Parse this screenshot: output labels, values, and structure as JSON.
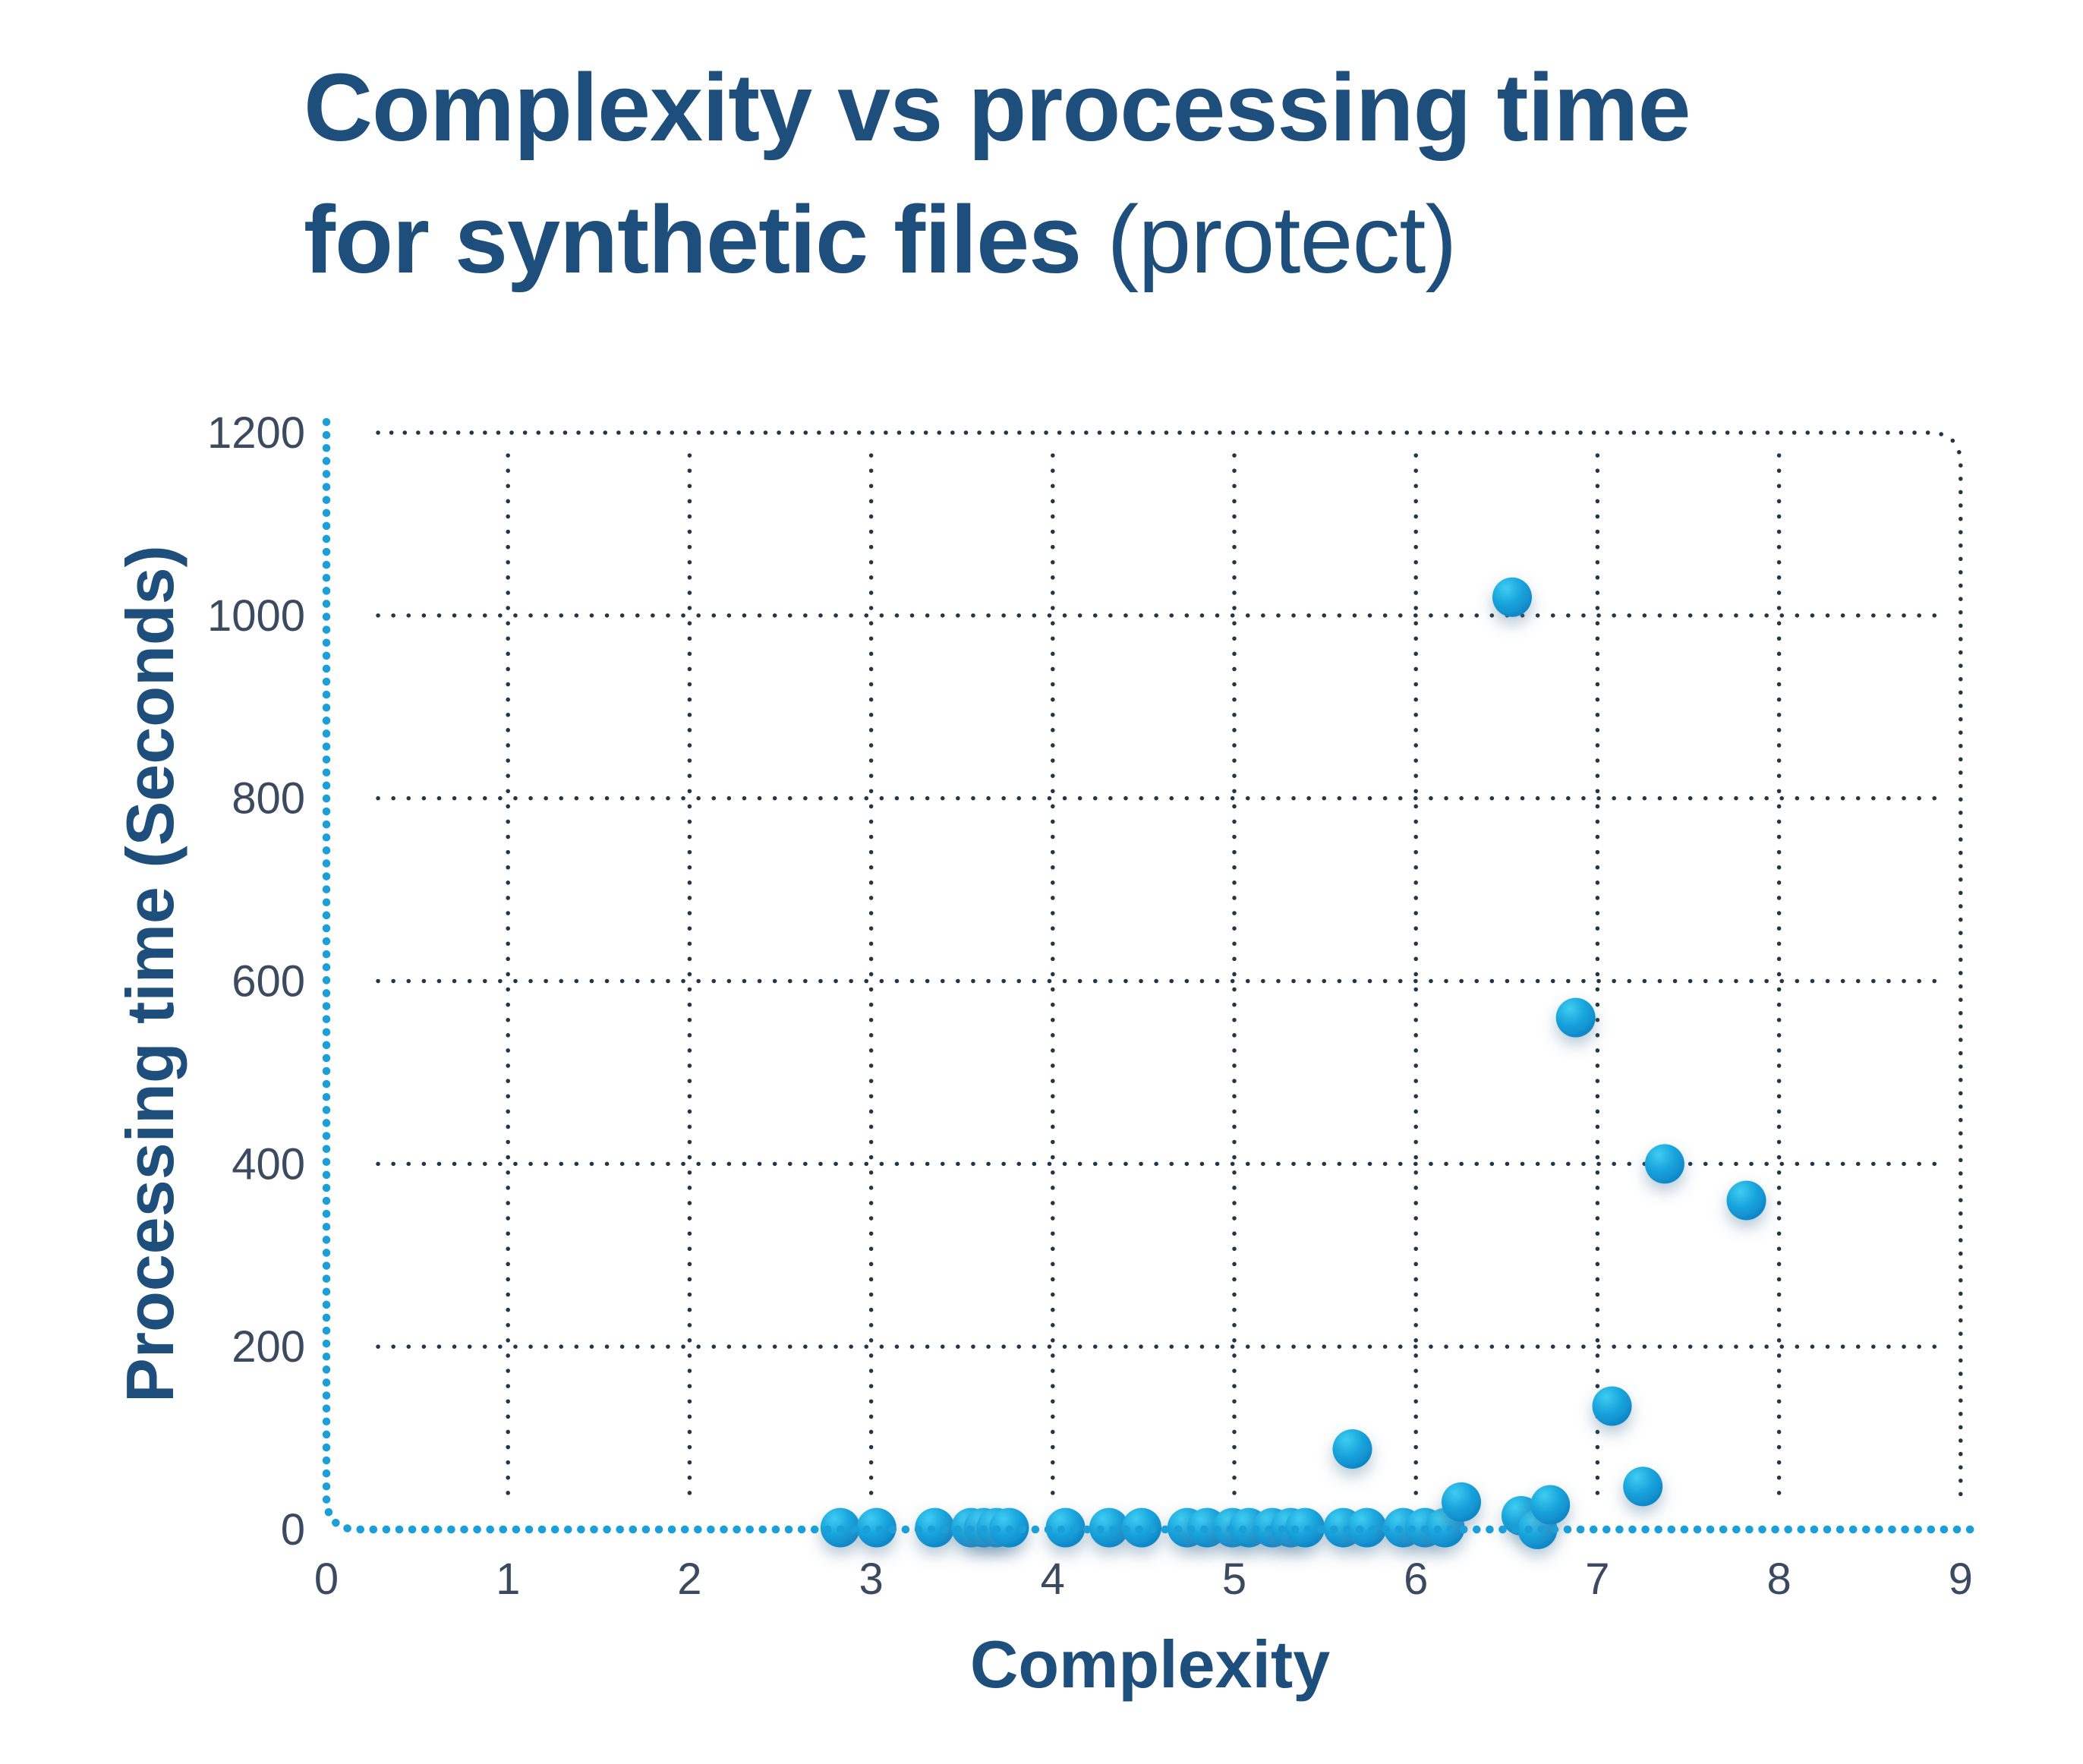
{
  "title": {
    "line1": "Complexity vs processing time",
    "line2_bold": "for synthetic files",
    "line2_light": "(protect)"
  },
  "chart_data": {
    "type": "scatter",
    "title": "Complexity vs processing time for synthetic files (protect)",
    "xlabel": "Complexity",
    "ylabel": "Processing time (Seconds)",
    "xlim": [
      0,
      9
    ],
    "ylim": [
      0,
      1200
    ],
    "x_ticks": [
      0,
      1,
      2,
      3,
      4,
      5,
      6,
      7,
      8,
      9
    ],
    "y_ticks": [
      0,
      200,
      400,
      600,
      800,
      1000,
      1200
    ],
    "grid": "dotted",
    "legend_position": "none",
    "series": [
      {
        "name": "synthetic files (protect)",
        "points": [
          {
            "x": 2.83,
            "y": 2
          },
          {
            "x": 3.03,
            "y": 2
          },
          {
            "x": 3.35,
            "y": 2
          },
          {
            "x": 3.55,
            "y": 2
          },
          {
            "x": 3.62,
            "y": 2
          },
          {
            "x": 3.69,
            "y": 2
          },
          {
            "x": 3.76,
            "y": 2
          },
          {
            "x": 4.07,
            "y": 2
          },
          {
            "x": 4.31,
            "y": 2
          },
          {
            "x": 4.49,
            "y": 2
          },
          {
            "x": 4.74,
            "y": 2
          },
          {
            "x": 4.85,
            "y": 2
          },
          {
            "x": 4.99,
            "y": 2
          },
          {
            "x": 5.08,
            "y": 2
          },
          {
            "x": 5.21,
            "y": 2
          },
          {
            "x": 5.31,
            "y": 2
          },
          {
            "x": 5.39,
            "y": 2
          },
          {
            "x": 5.6,
            "y": 2
          },
          {
            "x": 5.65,
            "y": 88
          },
          {
            "x": 5.73,
            "y": 2
          },
          {
            "x": 5.93,
            "y": 2
          },
          {
            "x": 6.05,
            "y": 2
          },
          {
            "x": 6.16,
            "y": 2
          },
          {
            "x": 6.25,
            "y": 30
          },
          {
            "x": 6.53,
            "y": 1020
          },
          {
            "x": 6.58,
            "y": 15
          },
          {
            "x": 6.67,
            "y": 0
          },
          {
            "x": 6.74,
            "y": 27
          },
          {
            "x": 6.88,
            "y": 560
          },
          {
            "x": 7.08,
            "y": 135
          },
          {
            "x": 7.25,
            "y": 47
          },
          {
            "x": 7.37,
            "y": 400
          },
          {
            "x": 7.82,
            "y": 360
          }
        ]
      }
    ]
  },
  "style": {
    "title_color": "#1d4e7c",
    "tick_color": "#3b4a5e",
    "grid_dot_color": "#223647",
    "axis_dot_color": "#1b9fd8",
    "marker_top_color": "#3ecdf2",
    "marker_mid_color": "#1aa6dd",
    "marker_bottom_color": "#0b7ec2",
    "marker_shadow_color": "#5d86a4",
    "background": "#ffffff"
  }
}
